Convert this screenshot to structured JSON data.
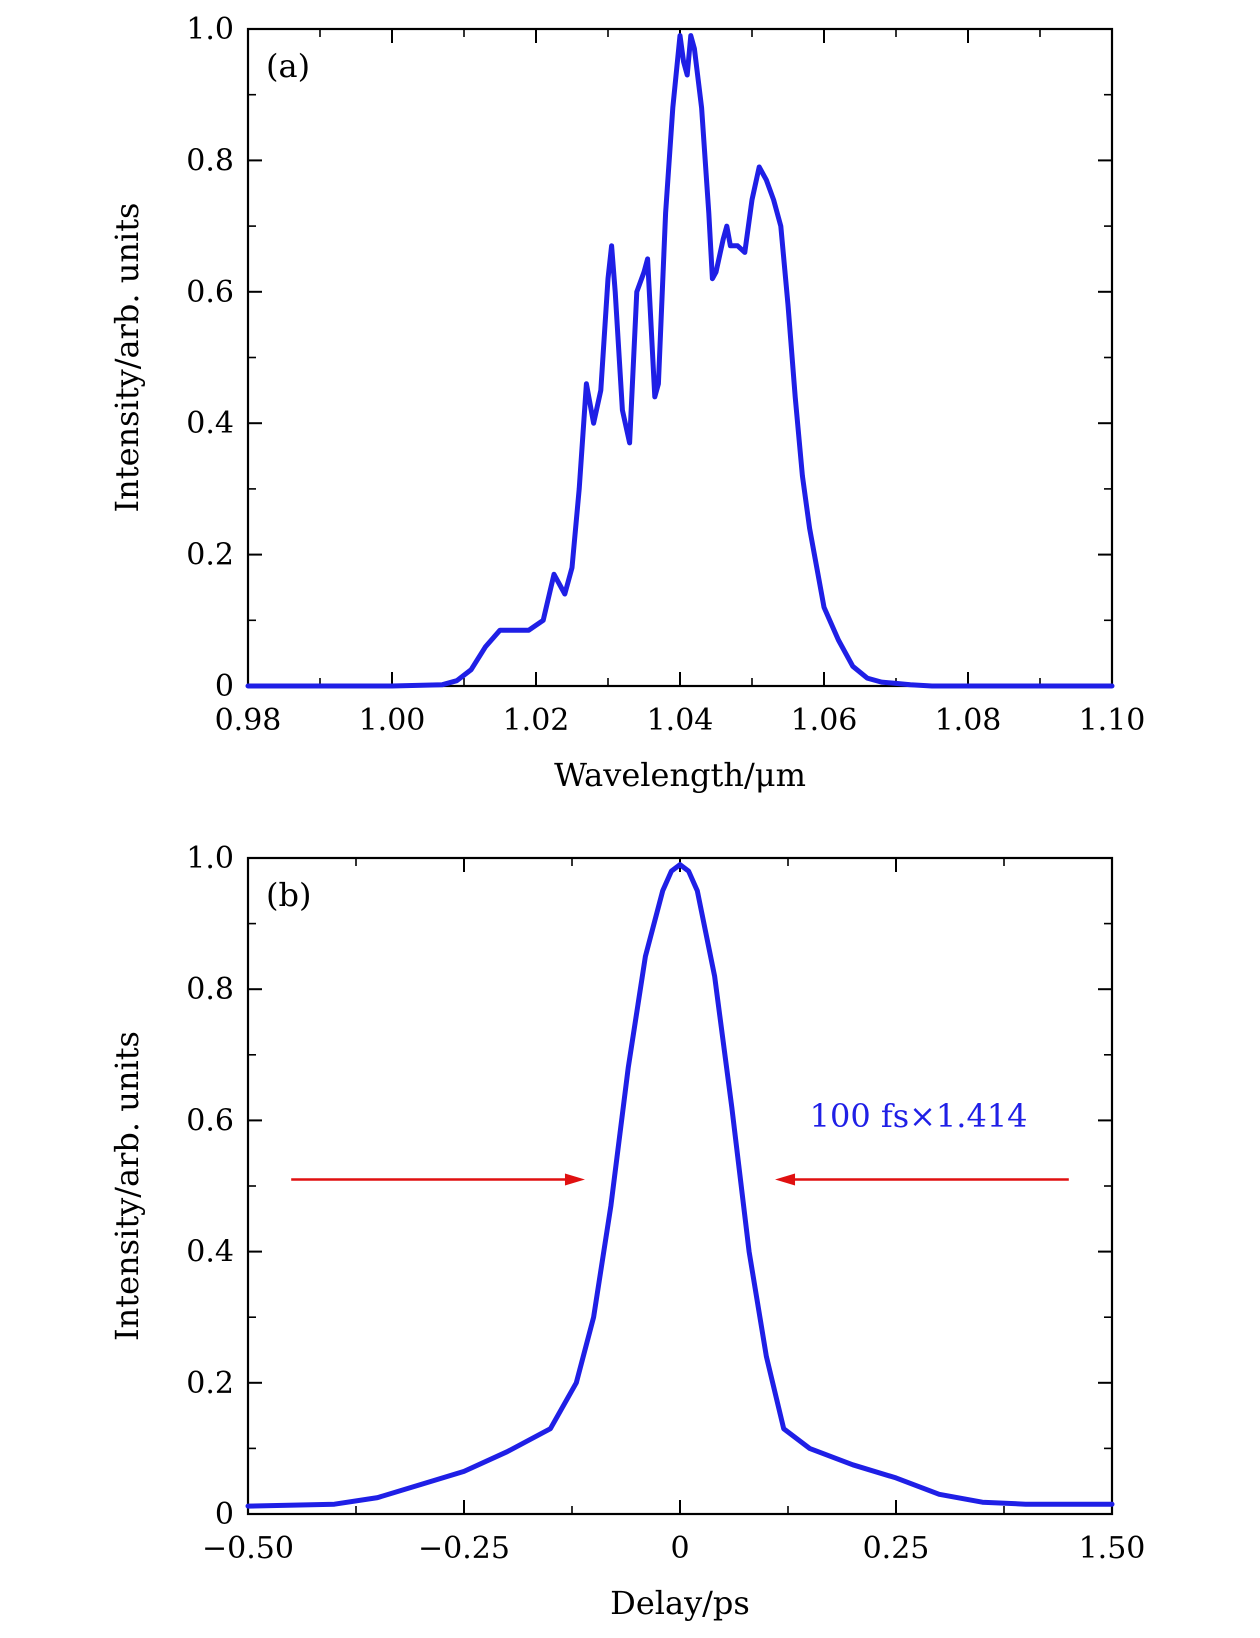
{
  "colors": {
    "series": "#1f1fe6",
    "arrow": "#e01010",
    "axis": "#000000"
  },
  "chart_data": [
    {
      "type": "line",
      "panel_label": "(a)",
      "xlabel": "Wavelength/μm",
      "ylabel": "Intensity/arb. units",
      "xlim": [
        0.98,
        1.1
      ],
      "ylim": [
        0,
        1.0
      ],
      "xticks": [
        0.98,
        1.0,
        1.02,
        1.04,
        1.06,
        1.08,
        1.1
      ],
      "xtick_labels": [
        "0.98",
        "1.00",
        "1.02",
        "1.04",
        "1.06",
        "1.08",
        "1.10"
      ],
      "yticks": [
        0,
        0.2,
        0.4,
        0.6,
        0.8,
        1.0
      ],
      "ytick_labels": [
        "0",
        "0.2",
        "0.4",
        "0.6",
        "0.8",
        "1.0"
      ],
      "grid": false,
      "series": [
        {
          "x": [
            0.98,
            1.0,
            1.007,
            1.009,
            1.011,
            1.013,
            1.015,
            1.017,
            1.019,
            1.021,
            1.0225,
            1.024,
            1.025,
            1.026,
            1.027,
            1.028,
            1.029,
            1.03,
            1.0305,
            1.031,
            1.032,
            1.033,
            1.034,
            1.035,
            1.0355,
            1.0365,
            1.037,
            1.038,
            1.039,
            1.04,
            1.0405,
            1.041,
            1.0415,
            1.042,
            1.043,
            1.044,
            1.0445,
            1.045,
            1.046,
            1.0465,
            1.047,
            1.048,
            1.049,
            1.05,
            1.051,
            1.052,
            1.053,
            1.054,
            1.055,
            1.056,
            1.057,
            1.058,
            1.059,
            1.06,
            1.062,
            1.064,
            1.066,
            1.068,
            1.07,
            1.072,
            1.075,
            1.1
          ],
          "y": [
            0,
            0,
            0.002,
            0.008,
            0.025,
            0.06,
            0.085,
            0.085,
            0.085,
            0.1,
            0.17,
            0.14,
            0.18,
            0.3,
            0.46,
            0.4,
            0.45,
            0.62,
            0.67,
            0.6,
            0.42,
            0.37,
            0.6,
            0.63,
            0.65,
            0.44,
            0.46,
            0.72,
            0.88,
            0.99,
            0.95,
            0.93,
            0.99,
            0.97,
            0.88,
            0.72,
            0.62,
            0.63,
            0.68,
            0.7,
            0.67,
            0.67,
            0.66,
            0.74,
            0.79,
            0.77,
            0.74,
            0.7,
            0.58,
            0.44,
            0.32,
            0.24,
            0.18,
            0.12,
            0.07,
            0.03,
            0.012,
            0.006,
            0.004,
            0.002,
            0,
            0
          ]
        }
      ]
    },
    {
      "type": "line",
      "panel_label": "(b)",
      "xlabel": "Delay/ps",
      "ylabel": "Intensity/arb. units",
      "xlim": [
        -0.5,
        1.5
      ],
      "ylim": [
        0,
        1.0
      ],
      "xticks": [
        -0.5,
        -0.25,
        0,
        0.25,
        1.5
      ],
      "xtick_labels": [
        "−0.50",
        "−0.25",
        "0",
        "0.25",
        "1.50"
      ],
      "yticks": [
        0,
        0.2,
        0.4,
        0.6,
        0.8,
        1.0
      ],
      "ytick_labels": [
        "0",
        "0.2",
        "0.4",
        "0.6",
        "0.8",
        "1.0"
      ],
      "grid": false,
      "series": [
        {
          "x": [
            -0.5,
            -0.4,
            -0.35,
            -0.3,
            -0.25,
            -0.2,
            -0.15,
            -0.12,
            -0.1,
            -0.08,
            -0.06,
            -0.04,
            -0.02,
            -0.01,
            0,
            0.01,
            0.02,
            0.04,
            0.06,
            0.08,
            0.1,
            0.12,
            0.15,
            0.2,
            0.25,
            0.3,
            0.35,
            0.4,
            0.5
          ],
          "y": [
            0.012,
            0.015,
            0.025,
            0.045,
            0.065,
            0.095,
            0.13,
            0.2,
            0.3,
            0.47,
            0.68,
            0.85,
            0.95,
            0.98,
            0.99,
            0.98,
            0.95,
            0.82,
            0.62,
            0.4,
            0.24,
            0.13,
            0.1,
            0.075,
            0.055,
            0.03,
            0.018,
            0.015,
            0.015
          ]
        }
      ],
      "annotations": [
        {
          "text": "100 fs×1.414",
          "x": 0.15,
          "y": 0.59
        },
        {
          "type": "arrow",
          "from": [
            -0.45,
            0.51
          ],
          "to": [
            -0.11,
            0.51
          ]
        },
        {
          "type": "arrow",
          "from": [
            0.45,
            0.51
          ],
          "to": [
            0.11,
            0.51
          ]
        }
      ]
    }
  ]
}
